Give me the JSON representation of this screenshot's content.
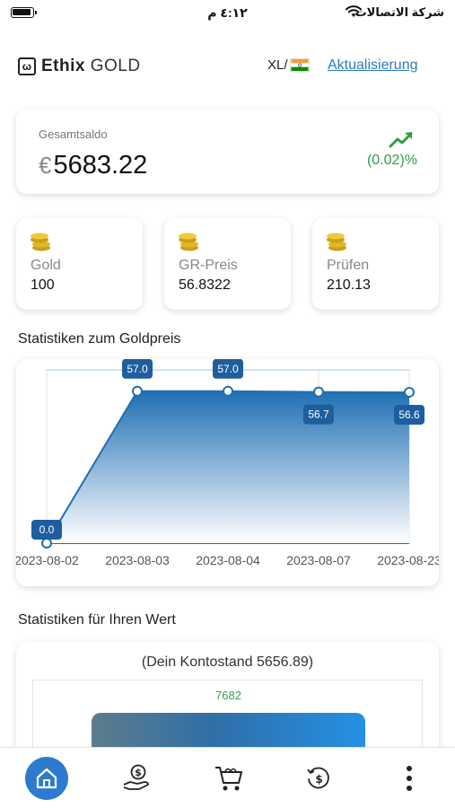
{
  "status_bar": {
    "time": "٤:١٢ م",
    "carrier": "شركة الاتصالات"
  },
  "header": {
    "logo_mark": "ω",
    "logo_brand": "Ethix",
    "logo_suffix": " GOLD",
    "language": "XL/",
    "update_link": "Aktualisierung"
  },
  "balance": {
    "label": "Gesamtsaldo",
    "currency": "€",
    "value": "5683.22",
    "change": "(0.02)%",
    "change_color": "#2f9e44"
  },
  "stats": [
    {
      "label": "Gold",
      "value": "100"
    },
    {
      "label": "GR-Preis",
      "value": "56.8322"
    },
    {
      "label": "Prüfen",
      "value": "210.13"
    }
  ],
  "gold_chart": {
    "section_title": "Statistiken zum Goldpreis",
    "chart_data": {
      "type": "area",
      "x": [
        "2023-08-02",
        "2023-08-03",
        "2023-08-04",
        "2023-08-07",
        "2023-08-23"
      ],
      "values": [
        0.0,
        57.0,
        57.0,
        56.7,
        56.6
      ],
      "data_labels": [
        "0.0",
        "57.0",
        "57.0",
        "56.7",
        "56.6"
      ],
      "ylim": [
        0,
        65
      ],
      "grid": true,
      "color": "#1f6fb3"
    }
  },
  "value_chart": {
    "section_title": "Statistiken für Ihren Wert",
    "caption": "(Dein Kontostand 5656.89)",
    "bar_label": "7682"
  },
  "nav": {
    "items": [
      "home",
      "money-hand",
      "cart",
      "history",
      "more"
    ],
    "active_color": "#2d7bd0"
  }
}
